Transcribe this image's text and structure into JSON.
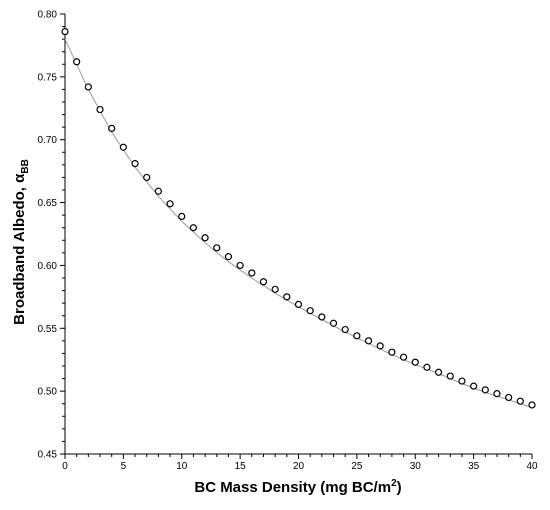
{
  "chart_data": {
    "type": "scatter",
    "title": "",
    "xlabel_text": "BC Mass Density (mg BC/m",
    "xlabel_sup": "2",
    "xlabel_close": ")",
    "ylabel_text": "Broadband Albedo, α",
    "ylabel_sub": "BB",
    "xlim": [
      0,
      40
    ],
    "ylim": [
      0.45,
      0.8
    ],
    "x_ticks": [
      0,
      5,
      10,
      15,
      20,
      25,
      30,
      35,
      40
    ],
    "x_tick_labels": [
      "0",
      "5",
      "10",
      "15",
      "20",
      "25",
      "30",
      "35",
      "40"
    ],
    "y_ticks": [
      0.45,
      0.5,
      0.55,
      0.6,
      0.65,
      0.7,
      0.75,
      0.8
    ],
    "y_tick_labels": [
      "0.45",
      "0.50",
      "0.55",
      "0.60",
      "0.65",
      "0.70",
      "0.75",
      "0.80"
    ],
    "grid": false,
    "legend": "none",
    "series": [
      {
        "marker": "open-circle",
        "x": [
          0,
          1,
          2,
          3,
          4,
          5,
          6,
          7,
          8,
          9,
          10,
          11,
          12,
          13,
          14,
          15,
          16,
          17,
          18,
          19,
          20,
          21,
          22,
          23,
          24,
          25,
          26,
          27,
          28,
          29,
          30,
          31,
          32,
          33,
          34,
          35,
          36,
          37,
          38,
          39,
          40
        ],
        "y": [
          0.786,
          0.762,
          0.742,
          0.724,
          0.709,
          0.694,
          0.681,
          0.67,
          0.659,
          0.649,
          0.639,
          0.63,
          0.622,
          0.614,
          0.607,
          0.6,
          0.594,
          0.587,
          0.581,
          0.575,
          0.569,
          0.564,
          0.559,
          0.554,
          0.549,
          0.544,
          0.54,
          0.536,
          0.531,
          0.527,
          0.523,
          0.519,
          0.515,
          0.512,
          0.508,
          0.504,
          0.501,
          0.498,
          0.495,
          0.492,
          0.489
        ]
      },
      {
        "marker": "line",
        "x": [
          0,
          2,
          4,
          6,
          8,
          10,
          12,
          14,
          16,
          18,
          20,
          22,
          24,
          26,
          28,
          30,
          32,
          34,
          36,
          38,
          40
        ],
        "y": [
          0.78,
          0.74,
          0.706,
          0.678,
          0.655,
          0.635,
          0.618,
          0.603,
          0.59,
          0.578,
          0.567,
          0.557,
          0.547,
          0.538,
          0.529,
          0.521,
          0.514,
          0.506,
          0.499,
          0.493,
          0.487
        ]
      }
    ]
  }
}
